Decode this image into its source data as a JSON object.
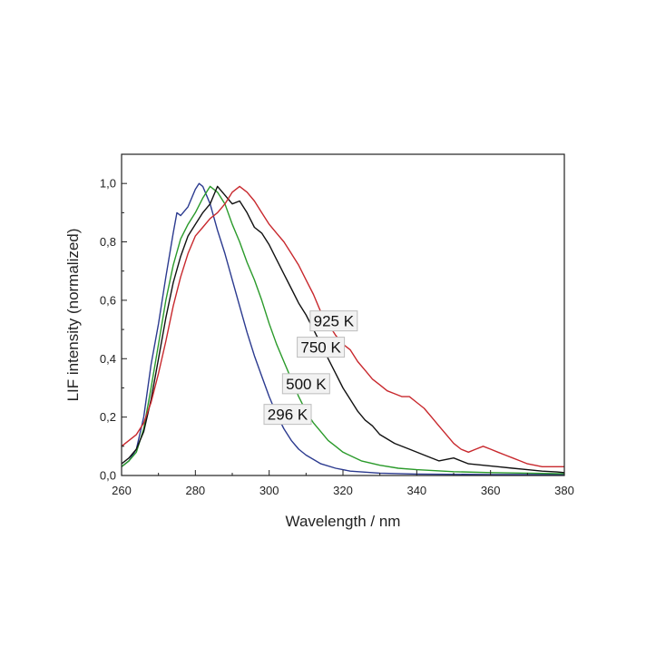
{
  "chart_data": {
    "type": "line",
    "title": "",
    "xlabel": "Wavelength / nm",
    "ylabel": "LIF intensity (normalized)",
    "xlim": [
      260,
      380
    ],
    "ylim": [
      0.0,
      1.1
    ],
    "x_ticks": [
      "260",
      "280",
      "300",
      "320",
      "340",
      "360",
      "380"
    ],
    "y_ticks": [
      "0,0",
      "0,2",
      "0,4",
      "0,6",
      "0,8",
      "1,0"
    ],
    "grid": false,
    "series": [
      {
        "name": "296 K",
        "color": "#2b3a8f",
        "points": [
          [
            260,
            0.03
          ],
          [
            262,
            0.05
          ],
          [
            264,
            0.09
          ],
          [
            266,
            0.2
          ],
          [
            268,
            0.38
          ],
          [
            270,
            0.52
          ],
          [
            272,
            0.68
          ],
          [
            274,
            0.83
          ],
          [
            275,
            0.9
          ],
          [
            276,
            0.89
          ],
          [
            278,
            0.92
          ],
          [
            280,
            0.98
          ],
          [
            281,
            1.0
          ],
          [
            282,
            0.99
          ],
          [
            284,
            0.93
          ],
          [
            286,
            0.84
          ],
          [
            288,
            0.76
          ],
          [
            290,
            0.67
          ],
          [
            292,
            0.58
          ],
          [
            294,
            0.49
          ],
          [
            296,
            0.41
          ],
          [
            298,
            0.34
          ],
          [
            300,
            0.27
          ],
          [
            302,
            0.21
          ],
          [
            304,
            0.16
          ],
          [
            306,
            0.12
          ],
          [
            308,
            0.09
          ],
          [
            310,
            0.07
          ],
          [
            314,
            0.04
          ],
          [
            318,
            0.025
          ],
          [
            322,
            0.015
          ],
          [
            330,
            0.008
          ],
          [
            340,
            0.005
          ],
          [
            360,
            0.003
          ],
          [
            380,
            0.003
          ]
        ]
      },
      {
        "name": "500 K",
        "color": "#2a9a2a",
        "points": [
          [
            260,
            0.03
          ],
          [
            262,
            0.05
          ],
          [
            264,
            0.08
          ],
          [
            266,
            0.16
          ],
          [
            268,
            0.3
          ],
          [
            270,
            0.45
          ],
          [
            272,
            0.6
          ],
          [
            274,
            0.72
          ],
          [
            276,
            0.81
          ],
          [
            278,
            0.86
          ],
          [
            280,
            0.9
          ],
          [
            282,
            0.95
          ],
          [
            284,
            0.99
          ],
          [
            286,
            0.97
          ],
          [
            288,
            0.93
          ],
          [
            290,
            0.86
          ],
          [
            292,
            0.8
          ],
          [
            294,
            0.73
          ],
          [
            296,
            0.67
          ],
          [
            298,
            0.6
          ],
          [
            300,
            0.52
          ],
          [
            302,
            0.45
          ],
          [
            304,
            0.39
          ],
          [
            306,
            0.33
          ],
          [
            308,
            0.27
          ],
          [
            310,
            0.22
          ],
          [
            312,
            0.18
          ],
          [
            314,
            0.15
          ],
          [
            316,
            0.12
          ],
          [
            318,
            0.1
          ],
          [
            320,
            0.08
          ],
          [
            325,
            0.05
          ],
          [
            330,
            0.035
          ],
          [
            335,
            0.025
          ],
          [
            340,
            0.02
          ],
          [
            350,
            0.013
          ],
          [
            360,
            0.01
          ],
          [
            370,
            0.008
          ],
          [
            380,
            0.006
          ]
        ]
      },
      {
        "name": "750 K",
        "color": "#111111",
        "points": [
          [
            260,
            0.04
          ],
          [
            262,
            0.06
          ],
          [
            264,
            0.09
          ],
          [
            266,
            0.15
          ],
          [
            268,
            0.26
          ],
          [
            270,
            0.4
          ],
          [
            272,
            0.54
          ],
          [
            274,
            0.66
          ],
          [
            276,
            0.75
          ],
          [
            278,
            0.82
          ],
          [
            280,
            0.86
          ],
          [
            282,
            0.9
          ],
          [
            284,
            0.93
          ],
          [
            286,
            0.99
          ],
          [
            288,
            0.96
          ],
          [
            290,
            0.93
          ],
          [
            292,
            0.94
          ],
          [
            294,
            0.9
          ],
          [
            296,
            0.85
          ],
          [
            298,
            0.83
          ],
          [
            300,
            0.79
          ],
          [
            302,
            0.74
          ],
          [
            304,
            0.69
          ],
          [
            306,
            0.64
          ],
          [
            308,
            0.59
          ],
          [
            310,
            0.55
          ],
          [
            312,
            0.5
          ],
          [
            314,
            0.45
          ],
          [
            316,
            0.4
          ],
          [
            318,
            0.35
          ],
          [
            320,
            0.3
          ],
          [
            322,
            0.26
          ],
          [
            324,
            0.22
          ],
          [
            326,
            0.19
          ],
          [
            328,
            0.17
          ],
          [
            330,
            0.14
          ],
          [
            334,
            0.11
          ],
          [
            338,
            0.09
          ],
          [
            342,
            0.07
          ],
          [
            346,
            0.05
          ],
          [
            350,
            0.06
          ],
          [
            354,
            0.04
          ],
          [
            358,
            0.035
          ],
          [
            362,
            0.03
          ],
          [
            366,
            0.025
          ],
          [
            370,
            0.02
          ],
          [
            374,
            0.015
          ],
          [
            378,
            0.012
          ],
          [
            380,
            0.01
          ]
        ]
      },
      {
        "name": "925 K",
        "color": "#c8282d",
        "points": [
          [
            260,
            0.1
          ],
          [
            262,
            0.12
          ],
          [
            264,
            0.14
          ],
          [
            266,
            0.18
          ],
          [
            268,
            0.25
          ],
          [
            270,
            0.35
          ],
          [
            272,
            0.46
          ],
          [
            274,
            0.58
          ],
          [
            276,
            0.68
          ],
          [
            278,
            0.76
          ],
          [
            280,
            0.82
          ],
          [
            282,
            0.85
          ],
          [
            284,
            0.88
          ],
          [
            286,
            0.9
          ],
          [
            288,
            0.93
          ],
          [
            290,
            0.97
          ],
          [
            292,
            0.99
          ],
          [
            294,
            0.97
          ],
          [
            296,
            0.94
          ],
          [
            298,
            0.9
          ],
          [
            300,
            0.86
          ],
          [
            302,
            0.83
          ],
          [
            304,
            0.8
          ],
          [
            306,
            0.76
          ],
          [
            308,
            0.72
          ],
          [
            310,
            0.67
          ],
          [
            312,
            0.62
          ],
          [
            314,
            0.56
          ],
          [
            316,
            0.52
          ],
          [
            318,
            0.48
          ],
          [
            320,
            0.45
          ],
          [
            322,
            0.43
          ],
          [
            324,
            0.39
          ],
          [
            326,
            0.36
          ],
          [
            328,
            0.33
          ],
          [
            330,
            0.31
          ],
          [
            332,
            0.29
          ],
          [
            334,
            0.28
          ],
          [
            336,
            0.27
          ],
          [
            338,
            0.27
          ],
          [
            340,
            0.25
          ],
          [
            342,
            0.23
          ],
          [
            344,
            0.2
          ],
          [
            346,
            0.17
          ],
          [
            348,
            0.14
          ],
          [
            350,
            0.11
          ],
          [
            352,
            0.09
          ],
          [
            354,
            0.08
          ],
          [
            356,
            0.09
          ],
          [
            358,
            0.1
          ],
          [
            360,
            0.09
          ],
          [
            362,
            0.08
          ],
          [
            364,
            0.07
          ],
          [
            366,
            0.06
          ],
          [
            368,
            0.05
          ],
          [
            370,
            0.04
          ],
          [
            372,
            0.035
          ],
          [
            374,
            0.03
          ],
          [
            376,
            0.03
          ],
          [
            378,
            0.03
          ],
          [
            380,
            0.03
          ]
        ]
      }
    ],
    "annotations": [
      {
        "text": "925 K",
        "x": 317.5,
        "y": 0.52
      },
      {
        "text": "750 K",
        "x": 314.0,
        "y": 0.43
      },
      {
        "text": "500 K",
        "x": 310.0,
        "y": 0.305
      },
      {
        "text": "296 K",
        "x": 305.0,
        "y": 0.2
      }
    ]
  }
}
